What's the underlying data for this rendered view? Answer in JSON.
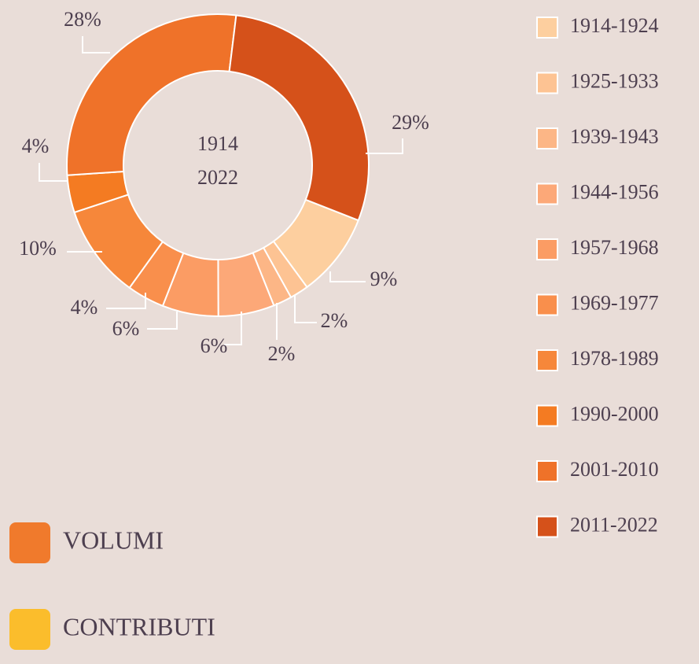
{
  "chart_data": {
    "type": "donut",
    "center_labels": [
      "1914",
      "2022"
    ],
    "categories": [
      "1914-1924",
      "1925-1933",
      "1939-1943",
      "1944-1956",
      "1957-1968",
      "1969-1977",
      "1978-1989",
      "1990-2000",
      "2001-2010",
      "2011-2022"
    ],
    "values": [
      9,
      2,
      2,
      6,
      6,
      4,
      10,
      4,
      28,
      29
    ],
    "value_labels": [
      "9%",
      "2%",
      "2%",
      "6%",
      "6%",
      "4%",
      "10%",
      "4%",
      "28%",
      "29%"
    ],
    "colors": [
      "#fdcf9f",
      "#fdc393",
      "#fcb686",
      "#fca878",
      "#fb9c64",
      "#f98f4c",
      "#f6873a",
      "#f47b22",
      "#ef7229",
      "#d5511a"
    ],
    "groups": [
      {
        "name": "VOLUMI",
        "color": "#f07a2c"
      },
      {
        "name": "CONTRIBUTI",
        "color": "#fbbd2c"
      }
    ]
  }
}
